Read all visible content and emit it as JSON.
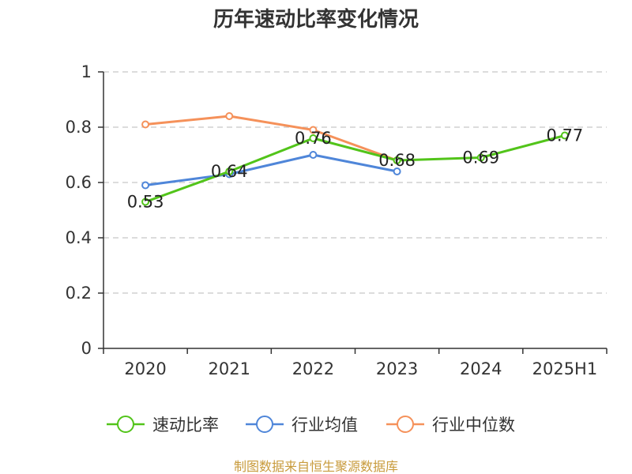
{
  "chart_data": {
    "type": "line",
    "title": "历年速动比率变化情况",
    "categories": [
      "2020",
      "2021",
      "2022",
      "2023",
      "2024",
      "2025H1"
    ],
    "ylim": [
      0,
      1
    ],
    "yticks": [
      0,
      0.2,
      0.4,
      0.6,
      0.8,
      1
    ],
    "ytick_labels": [
      "0",
      "0.2",
      "0.4",
      "0.6",
      "0.8",
      "1"
    ],
    "grid": true,
    "legend_position": "bottom",
    "series": [
      {
        "name": "速动比率",
        "color": "#52c41a",
        "values": [
          0.53,
          0.64,
          0.76,
          0.68,
          0.69,
          0.77
        ],
        "labels": [
          "0.53",
          "0.64",
          "0.76",
          "0.68",
          "0.69",
          "0.77"
        ]
      },
      {
        "name": "行业均值",
        "color": "#4f86d9",
        "values": [
          0.59,
          0.63,
          0.7,
          0.64,
          null,
          null
        ]
      },
      {
        "name": "行业中位数",
        "color": "#f5915a",
        "values": [
          0.81,
          0.84,
          0.79,
          0.68,
          null,
          null
        ]
      }
    ],
    "source": "制图数据来自恒生聚源数据库"
  }
}
